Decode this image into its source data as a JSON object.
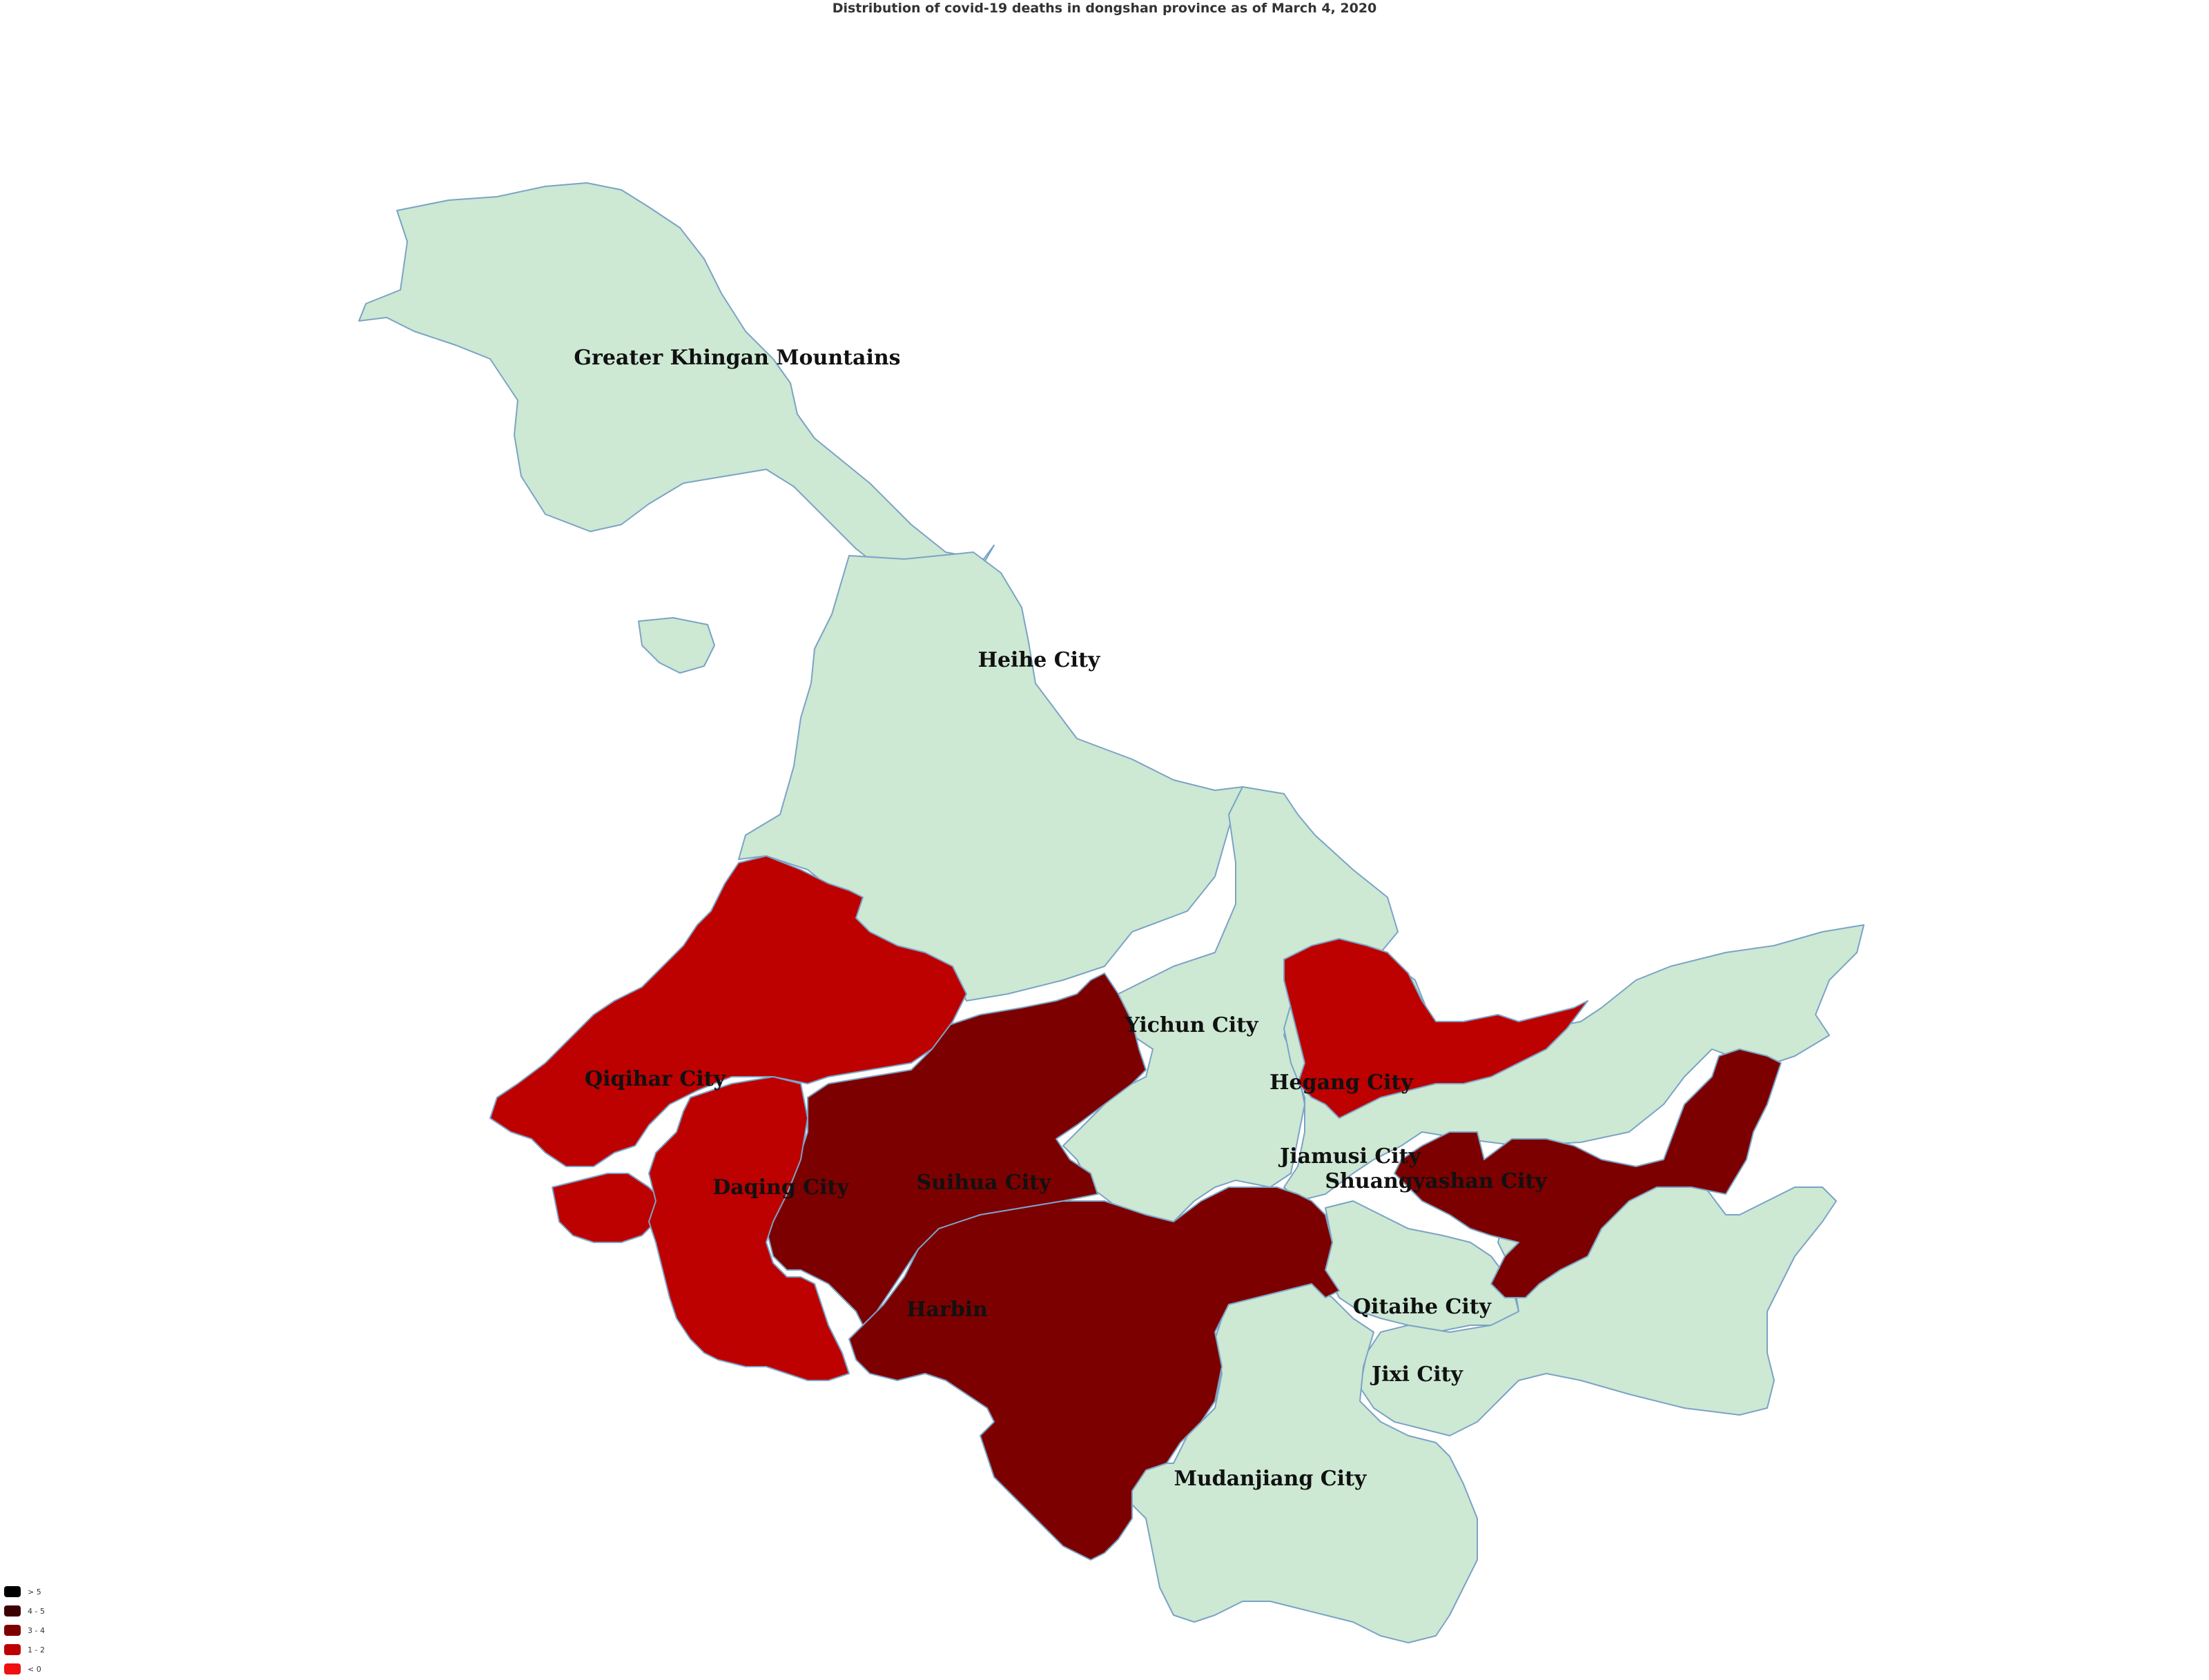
{
  "title": "Distribution of covid-19 deaths in dongshan province as of March 4, 2020",
  "colors": {
    "zero": "#cde8d3",
    "one_two": "#bd0000",
    "three_four": "#7d0000",
    "border": "#7aa3c6"
  },
  "legend": [
    {
      "label": "> 5",
      "color": "#000000"
    },
    {
      "label": "4 - 5",
      "color": "#3d0000"
    },
    {
      "label": "3 - 4",
      "color": "#7d0000"
    },
    {
      "label": "1 - 2",
      "color": "#bd0000"
    },
    {
      "label": "< 0",
      "color": "#f01010"
    }
  ],
  "regions": {
    "greater_khingan": {
      "name": "Greater Khingan Mountains",
      "bin": "< 0"
    },
    "heihe": {
      "name": "Heihe City",
      "bin": "< 0"
    },
    "qiqihar": {
      "name": "Qiqihar City",
      "bin": "1 - 2"
    },
    "daqing": {
      "name": "Daqing City",
      "bin": "1 - 2"
    },
    "suihua": {
      "name": "Suihua City",
      "bin": "3 - 4"
    },
    "harbin": {
      "name": "Harbin",
      "bin": "3 - 4"
    },
    "yichun": {
      "name": "Yichun City",
      "bin": "< 0"
    },
    "hegang": {
      "name": "Hegang City",
      "bin": "1 - 2"
    },
    "jiamusi": {
      "name": "Jiamusi City",
      "bin": "< 0"
    },
    "shuangyashan": {
      "name": "Shuangyashan City",
      "bin": "3 - 4"
    },
    "qitaihe": {
      "name": "Qitaihe City",
      "bin": "< 0"
    },
    "jixi": {
      "name": "Jixi City",
      "bin": "< 0"
    },
    "mudanjiang": {
      "name": "Mudanjiang City",
      "bin": "< 0"
    }
  }
}
